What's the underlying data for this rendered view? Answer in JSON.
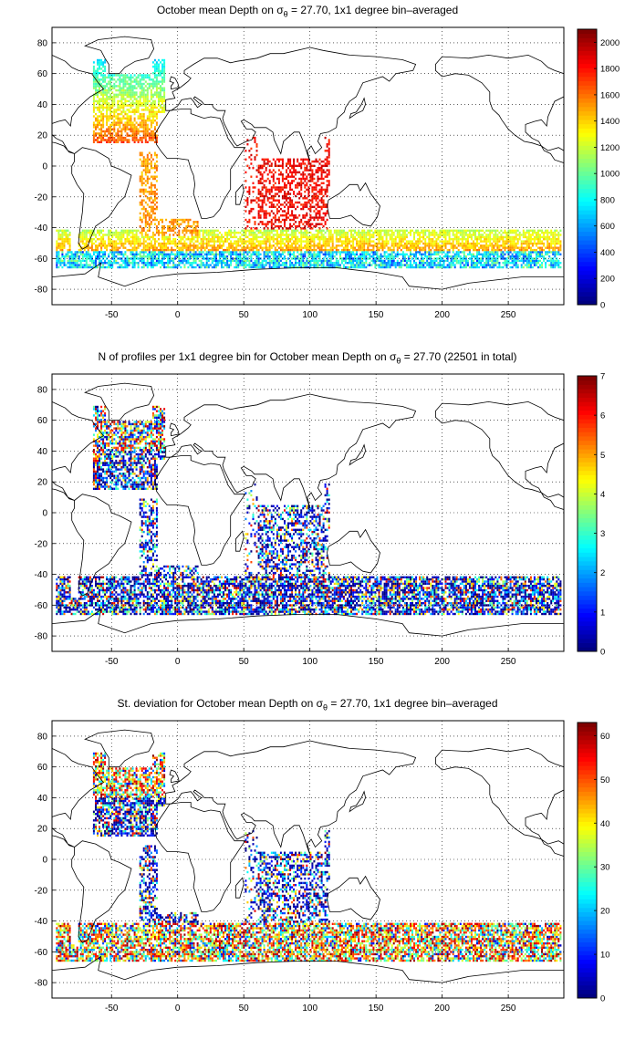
{
  "panels": [
    {
      "id": "depth",
      "title_pre": "October mean Depth on σ",
      "title_sub": "θ",
      "title_post": " = 27.70, 1x1 degree bin–averaged",
      "colorbar_ticks": [
        "0",
        "200",
        "400",
        "600",
        "800",
        "1000",
        "1200",
        "1400",
        "1600",
        "1800",
        "2000"
      ],
      "colorbar_max": 2100,
      "colormap": "jet"
    },
    {
      "id": "nprofiles",
      "title_pre": "N of profiles per 1x1 degree bin for October mean Depth on σ",
      "title_sub": "θ",
      "title_post": " = 27.70 (22501 in total)",
      "colorbar_ticks": [
        "0",
        "1",
        "2",
        "3",
        "4",
        "5",
        "6",
        "7"
      ],
      "colorbar_max": 7,
      "colormap": "jet"
    },
    {
      "id": "stdev",
      "title_pre": "St. deviation for October mean Depth on σ",
      "title_sub": "θ",
      "title_post": " = 27.70, 1x1 degree bin–averaged",
      "colorbar_ticks": [
        "0",
        "10",
        "20",
        "30",
        "40",
        "50",
        "60"
      ],
      "colorbar_max": 63,
      "colormap": "jet"
    }
  ],
  "map_axes": {
    "x_ticks": [
      "-50",
      "0",
      "50",
      "100",
      "150",
      "200",
      "250"
    ],
    "y_ticks": [
      "80",
      "60",
      "40",
      "20",
      "0",
      "-20",
      "-40",
      "-60",
      "-80"
    ],
    "xlim": [
      -95,
      292
    ],
    "ylim": [
      -90,
      90
    ],
    "grid": "dotted"
  }
}
